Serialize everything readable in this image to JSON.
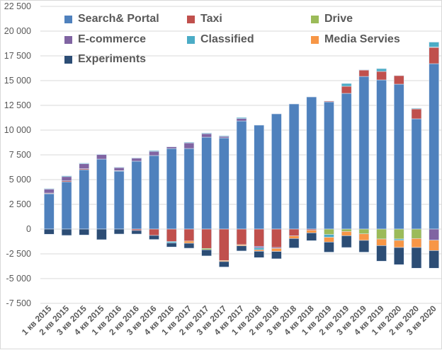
{
  "chart_data": {
    "type": "bar",
    "stacked": true,
    "title": "",
    "xlabel": "",
    "ylabel": "",
    "ylim": [
      -7500,
      22500
    ],
    "yticks": [
      22500,
      20000,
      17500,
      15000,
      12500,
      10000,
      7500,
      5000,
      2500,
      0,
      -2500,
      -5000,
      -7500
    ],
    "ytick_labels": [
      "22 500",
      "20 000",
      "17 500",
      "15 000",
      "12 500",
      "10 000",
      "7 500",
      "5 000",
      "2 500",
      "0",
      "-2 500",
      "-5 000",
      "-7 500"
    ],
    "grid": true,
    "legend_position": "top-left",
    "categories": [
      "1 кв 2015",
      "2 кв 2015",
      "3 кв 2015",
      "4 кв 2015",
      "1 кв 2016",
      "2 кв 2016",
      "3 кв 2016",
      "4 кв 2016",
      "1 кв 2017",
      "2 кв 2017",
      "3 кв 2017",
      "4 кв 2017",
      "1 кв 2018",
      "2 кв 2018",
      "3 кв 2018",
      "4 кв 2018",
      "1 кв 2019",
      "2 кв 2019",
      "3 кв 2019",
      "4 кв 2019",
      "1 кв 2020",
      "2 кв 2020",
      "3 кв 2020"
    ],
    "series": [
      {
        "name": "Search& Portal",
        "color": "#4f81bd",
        "values": [
          3570,
          4780,
          6000,
          7070,
          5860,
          6860,
          7430,
          8140,
          8140,
          9280,
          9210,
          10920,
          10500,
          11640,
          12640,
          13350,
          12850,
          13710,
          15420,
          15070,
          14640,
          11140,
          16710
        ]
      },
      {
        "name": "Taxi",
        "color": "#c0504d",
        "values": [
          70,
          100,
          100,
          0,
          50,
          -140,
          -640,
          -1260,
          -1210,
          -1950,
          -3165,
          -1570,
          -1740,
          -1860,
          -690,
          -120,
          80,
          720,
          640,
          860,
          860,
          1000,
          1640
        ]
      },
      {
        "name": "Drive",
        "color": "#9bbb59",
        "values": [
          0,
          0,
          0,
          0,
          0,
          0,
          0,
          0,
          0,
          -140,
          0,
          0,
          0,
          0,
          0,
          0,
          -550,
          -240,
          -480,
          -1000,
          -1000,
          -950,
          40
        ]
      },
      {
        "name": "E-commerce",
        "color": "#8064a2",
        "values": [
          400,
          420,
          500,
          450,
          300,
          300,
          420,
          170,
          560,
          360,
          150,
          250,
          -160,
          -90,
          0,
          0,
          0,
          0,
          0,
          0,
          0,
          0,
          -1120
        ]
      },
      {
        "name": "Classified",
        "color": "#4bacc6",
        "values": [
          60,
          80,
          70,
          50,
          50,
          50,
          80,
          -140,
          70,
          70,
          70,
          100,
          -190,
          0,
          0,
          0,
          -280,
          280,
          40,
          280,
          -140,
          70,
          500
        ]
      },
      {
        "name": "Media Servies",
        "color": "#f79646",
        "values": [
          0,
          0,
          0,
          0,
          0,
          0,
          0,
          0,
          -220,
          0,
          -115,
          -120,
          -150,
          -310,
          -260,
          -260,
          -480,
          -430,
          -660,
          -670,
          -720,
          -910,
          -1050
        ]
      },
      {
        "name": "Experiments",
        "color": "#2c4d75",
        "values": [
          -520,
          -640,
          -600,
          -1070,
          -500,
          -360,
          -410,
          -410,
          -500,
          -620,
          -550,
          -520,
          -640,
          -740,
          -950,
          -790,
          -1020,
          -1190,
          -1190,
          -1570,
          -1730,
          -2090,
          -1780
        ]
      }
    ]
  }
}
